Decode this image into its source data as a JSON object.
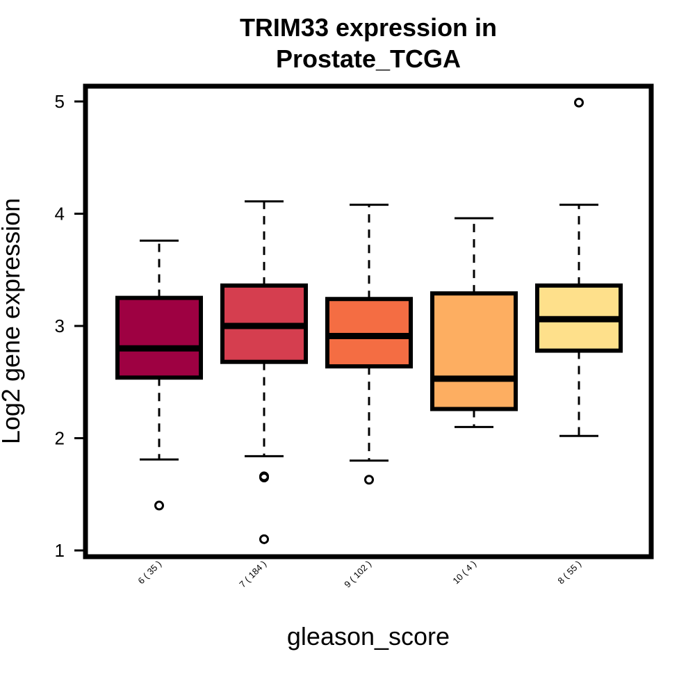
{
  "chart_data": {
    "type": "box",
    "title_line1": "TRIM33 expression in",
    "title_line2": "Prostate_TCGA",
    "xlabel": "gleason_score",
    "ylabel": "Log2 gene expression",
    "ylim": [
      1,
      5
    ],
    "yticks": [
      "1",
      "2",
      "3",
      "4",
      "5"
    ],
    "grid": false,
    "categories": [
      "6 ( 35 )",
      "7 ( 184 )",
      "9 ( 102 )",
      "10 ( 4 )",
      "8 ( 55 )"
    ],
    "boxes": [
      {
        "category": "6 ( 35 )",
        "whisker_low": 1.81,
        "q1": 2.54,
        "median": 2.8,
        "q3": 3.25,
        "whisker_high": 3.76,
        "outliers": [
          1.4
        ],
        "color": "#9E0142"
      },
      {
        "category": "7 ( 184 )",
        "whisker_low": 1.84,
        "q1": 2.68,
        "median": 3.0,
        "q3": 3.36,
        "whisker_high": 4.11,
        "outliers": [
          1.65,
          1.66,
          1.1
        ],
        "color": "#D53E4F"
      },
      {
        "category": "9 ( 102 )",
        "whisker_low": 1.8,
        "q1": 2.64,
        "median": 2.91,
        "q3": 3.24,
        "whisker_high": 4.08,
        "outliers": [
          1.63
        ],
        "color": "#F46D43"
      },
      {
        "category": "10 ( 4 )",
        "whisker_low": 2.1,
        "q1": 2.26,
        "median": 2.53,
        "q3": 3.29,
        "whisker_high": 3.96,
        "outliers": [],
        "color": "#FDAE61"
      },
      {
        "category": "8 ( 55 )",
        "whisker_low": 2.02,
        "q1": 2.78,
        "median": 3.06,
        "q3": 3.36,
        "whisker_high": 4.08,
        "outliers": [
          4.99
        ],
        "color": "#FEE08B"
      }
    ]
  }
}
